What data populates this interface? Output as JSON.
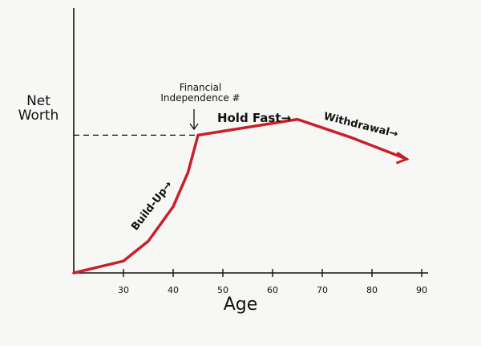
{
  "chart_data": {
    "type": "line",
    "xlabel": "Age",
    "ylabel": "Net Worth",
    "x": [
      20,
      30,
      35,
      40,
      43,
      45,
      55,
      65,
      76,
      87
    ],
    "series": [
      {
        "color": "#c8202a",
        "values": [
          0,
          4.5,
          12,
          25,
          38,
          52,
          55,
          58,
          51,
          43
        ]
      }
    ],
    "xlim": [
      20,
      90
    ],
    "xticks": [
      30,
      40,
      50,
      60,
      70,
      80,
      90
    ],
    "ylim": [
      0,
      100
    ],
    "reference_line": 52,
    "annotations": [
      "Financial Independence #",
      "Hold Fast→",
      "Withdrawal→",
      "Build-Up→"
    ]
  }
}
